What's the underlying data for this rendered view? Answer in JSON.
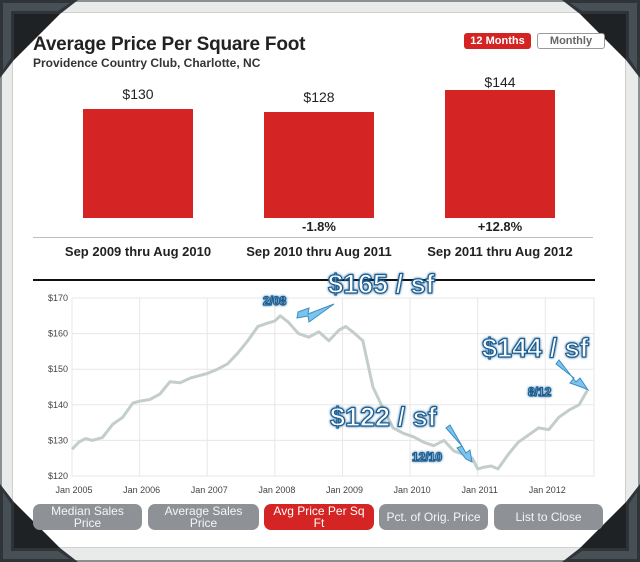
{
  "header": {
    "title": "Average Price Per Square Foot",
    "subtitle": "Providence Country Club, Charlotte, NC"
  },
  "toggle": {
    "active": "12 Months",
    "inactive": "Monthly"
  },
  "summary": {
    "periods": [
      {
        "label": "Sep 2009 thru Aug 2010",
        "value": "$130",
        "change": ""
      },
      {
        "label": "Sep 2010 thru Aug 2011",
        "value": "$128",
        "change": "-1.8%"
      },
      {
        "label": "Sep 2011 thru Aug 2012",
        "value": "$144",
        "change": "+12.8%"
      }
    ]
  },
  "annotations": {
    "peak_value": "$165 / sf",
    "peak_date": "2/08",
    "low_value": "$122 / sf",
    "low_date": "12/10",
    "current_value": "$144 / sf",
    "current_date": "8/12"
  },
  "tabs": {
    "median": "Median Sales Price",
    "average": "Average Sales Price",
    "ppsf": "Avg Price Per Sq Ft",
    "pct_orig": "Pct. of Orig. Price",
    "list_close": "List to Close"
  },
  "colors": {
    "accent": "#d42424",
    "line": "#c3cdca",
    "callout_fill": "#7cc3ee",
    "tab_inactive": "#8e9296"
  },
  "chart_data": [
    {
      "type": "bar",
      "categories": [
        "Sep 2009 thru Aug 2010",
        "Sep 2010 thru Aug 2011",
        "Sep 2011 thru Aug 2012"
      ],
      "values": [
        130,
        128,
        144
      ],
      "data_labels": [
        "$130",
        "$128",
        "$144"
      ],
      "change_labels": [
        "",
        "-1.8%",
        "+12.8%"
      ]
    },
    {
      "type": "line",
      "x_tick_labels": [
        "Jan 2005",
        "Jan 2006",
        "Jan 2007",
        "Jan 2008",
        "Jan 2009",
        "Jan 2010",
        "Jan 2011",
        "Jan 2012"
      ],
      "y_tick_labels": [
        "$120",
        "$130",
        "$140",
        "$150",
        "$160",
        "$170"
      ],
      "ylim": [
        120,
        170
      ],
      "xlim": [
        2005.0,
        2012.72
      ],
      "grid": true,
      "series": [
        {
          "x": [
            2005.0,
            2005.1,
            2005.2,
            2005.3,
            2005.45,
            2005.6,
            2005.75,
            2005.9,
            2006.0,
            2006.15,
            2006.3,
            2006.45,
            2006.6,
            2006.75,
            2006.9,
            2007.0,
            2007.15,
            2007.3,
            2007.45,
            2007.6,
            2007.75,
            2007.9,
            2008.0,
            2008.08,
            2008.2,
            2008.35,
            2008.5,
            2008.65,
            2008.8,
            2008.95,
            2009.05,
            2009.15,
            2009.3,
            2009.45,
            2009.6,
            2009.75,
            2009.9,
            2010.05,
            2010.2,
            2010.35,
            2010.5,
            2010.65,
            2010.8,
            2010.92,
            2011.0,
            2011.1,
            2011.2,
            2011.3,
            2011.45,
            2011.6,
            2011.75,
            2011.9,
            2012.05,
            2012.2,
            2012.35,
            2012.5,
            2012.62
          ],
          "y": [
            127.5,
            129.5,
            130.5,
            130.0,
            130.8,
            134.5,
            136.5,
            140.5,
            141.0,
            141.5,
            143.0,
            146.5,
            146.2,
            147.5,
            148.3,
            148.8,
            150.0,
            151.5,
            154.5,
            158.0,
            162.0,
            163.0,
            163.5,
            165.0,
            163.2,
            160.0,
            159.0,
            160.5,
            158.0,
            161.0,
            162.0,
            160.5,
            158.0,
            145.0,
            139.0,
            133.5,
            132.0,
            131.0,
            129.5,
            128.5,
            130.0,
            127.0,
            126.0,
            125.0,
            122.0,
            122.5,
            122.8,
            122.0,
            126.0,
            129.5,
            131.5,
            133.5,
            133.0,
            136.5,
            138.5,
            140.0,
            144.0
          ]
        }
      ]
    }
  ]
}
